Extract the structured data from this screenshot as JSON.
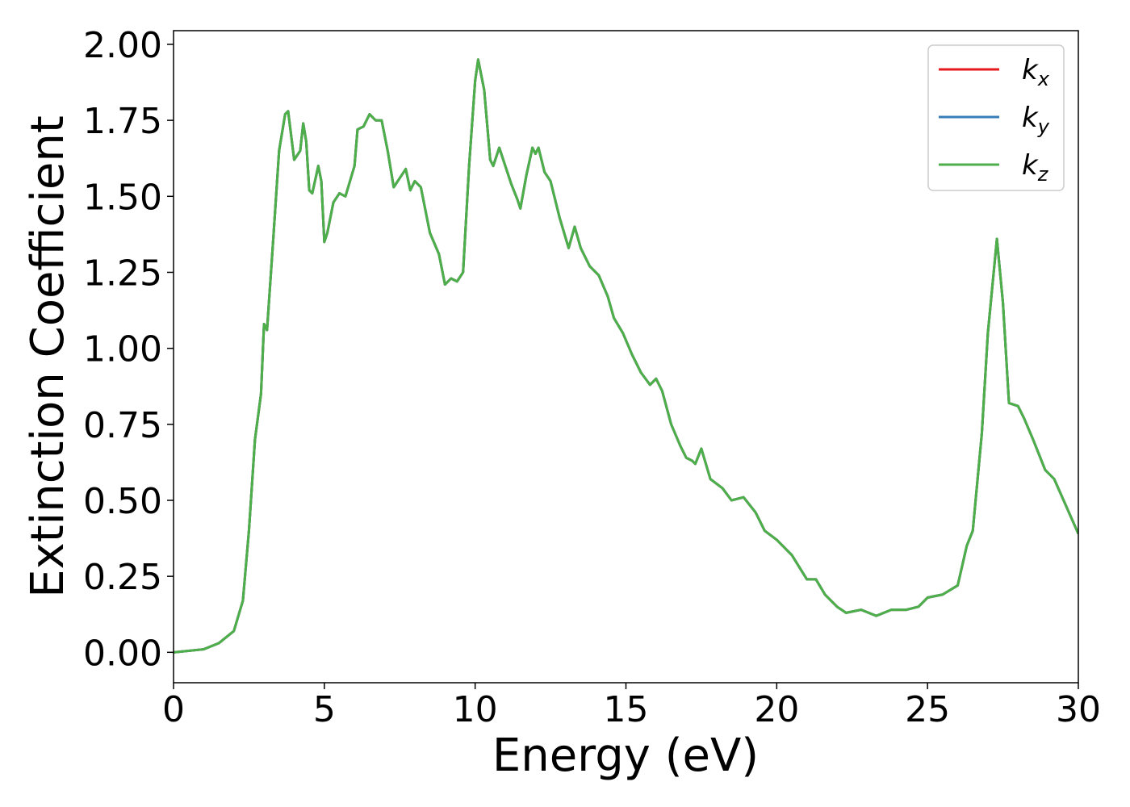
{
  "chart_data": {
    "type": "line",
    "xlabel": "Energy (eV)",
    "ylabel": "Extinction Coefficient",
    "x": [
      0,
      1,
      1.5,
      2.0,
      2.3,
      2.5,
      2.7,
      2.9,
      3.0,
      3.1,
      3.3,
      3.5,
      3.7,
      3.8,
      4.0,
      4.2,
      4.3,
      4.4,
      4.5,
      4.6,
      4.8,
      4.9,
      5.0,
      5.1,
      5.3,
      5.5,
      5.7,
      6.0,
      6.1,
      6.3,
      6.5,
      6.7,
      6.9,
      7.1,
      7.3,
      7.5,
      7.7,
      7.85,
      8.0,
      8.2,
      8.5,
      8.8,
      9.0,
      9.2,
      9.4,
      9.6,
      9.8,
      10.0,
      10.1,
      10.3,
      10.5,
      10.6,
      10.8,
      11.0,
      11.2,
      11.4,
      11.5,
      11.7,
      11.9,
      12.0,
      12.1,
      12.3,
      12.5,
      12.8,
      13.1,
      13.3,
      13.5,
      13.8,
      14.1,
      14.4,
      14.6,
      14.9,
      15.2,
      15.5,
      15.8,
      16.0,
      16.2,
      16.5,
      16.8,
      17.0,
      17.2,
      17.3,
      17.5,
      17.8,
      18.2,
      18.5,
      18.9,
      19.3,
      19.6,
      20.0,
      20.5,
      21.0,
      21.3,
      21.6,
      22.0,
      22.3,
      22.8,
      23.3,
      23.8,
      24.3,
      24.7,
      25.0,
      25.5,
      26.0,
      26.3,
      26.5,
      26.8,
      27.0,
      27.3,
      27.5,
      27.7,
      28.0,
      28.2,
      28.5,
      28.9,
      29.2,
      29.6,
      30.0
    ],
    "series": [
      {
        "name": "kx",
        "color": "#e41a1c",
        "values": [
          0,
          0.01,
          0.03,
          0.07,
          0.17,
          0.4,
          0.7,
          0.85,
          1.08,
          1.06,
          1.35,
          1.65,
          1.77,
          1.78,
          1.62,
          1.65,
          1.74,
          1.68,
          1.52,
          1.51,
          1.6,
          1.55,
          1.35,
          1.38,
          1.48,
          1.51,
          1.5,
          1.6,
          1.72,
          1.73,
          1.77,
          1.75,
          1.75,
          1.65,
          1.53,
          1.56,
          1.59,
          1.52,
          1.55,
          1.53,
          1.38,
          1.31,
          1.21,
          1.23,
          1.22,
          1.25,
          1.6,
          1.88,
          1.95,
          1.85,
          1.62,
          1.6,
          1.66,
          1.6,
          1.54,
          1.49,
          1.46,
          1.57,
          1.66,
          1.64,
          1.66,
          1.58,
          1.55,
          1.43,
          1.33,
          1.4,
          1.33,
          1.27,
          1.24,
          1.17,
          1.1,
          1.05,
          0.98,
          0.92,
          0.88,
          0.9,
          0.86,
          0.75,
          0.68,
          0.64,
          0.63,
          0.62,
          0.67,
          0.57,
          0.54,
          0.5,
          0.51,
          0.46,
          0.4,
          0.37,
          0.32,
          0.24,
          0.24,
          0.19,
          0.15,
          0.13,
          0.14,
          0.12,
          0.14,
          0.14,
          0.15,
          0.18,
          0.19,
          0.22,
          0.35,
          0.4,
          0.72,
          1.05,
          1.36,
          1.15,
          0.82,
          0.81,
          0.77,
          0.7,
          0.6,
          0.57,
          0.48,
          0.39
        ]
      },
      {
        "name": "ky",
        "color": "#377eb8",
        "values": [
          0,
          0.01,
          0.03,
          0.07,
          0.17,
          0.4,
          0.7,
          0.85,
          1.08,
          1.06,
          1.35,
          1.65,
          1.77,
          1.78,
          1.62,
          1.65,
          1.74,
          1.68,
          1.52,
          1.51,
          1.6,
          1.55,
          1.35,
          1.38,
          1.48,
          1.51,
          1.5,
          1.6,
          1.72,
          1.73,
          1.77,
          1.75,
          1.75,
          1.65,
          1.53,
          1.56,
          1.59,
          1.52,
          1.55,
          1.53,
          1.38,
          1.31,
          1.21,
          1.23,
          1.22,
          1.25,
          1.6,
          1.88,
          1.95,
          1.85,
          1.62,
          1.6,
          1.66,
          1.6,
          1.54,
          1.49,
          1.46,
          1.57,
          1.66,
          1.64,
          1.66,
          1.58,
          1.55,
          1.43,
          1.33,
          1.4,
          1.33,
          1.27,
          1.24,
          1.17,
          1.1,
          1.05,
          0.98,
          0.92,
          0.88,
          0.9,
          0.86,
          0.75,
          0.68,
          0.64,
          0.63,
          0.62,
          0.67,
          0.57,
          0.54,
          0.5,
          0.51,
          0.46,
          0.4,
          0.37,
          0.32,
          0.24,
          0.24,
          0.19,
          0.15,
          0.13,
          0.14,
          0.12,
          0.14,
          0.14,
          0.15,
          0.18,
          0.19,
          0.22,
          0.35,
          0.4,
          0.72,
          1.05,
          1.36,
          1.15,
          0.82,
          0.81,
          0.77,
          0.7,
          0.6,
          0.57,
          0.48,
          0.39
        ]
      },
      {
        "name": "kz",
        "color": "#4daf4a",
        "values": [
          0,
          0.01,
          0.03,
          0.07,
          0.17,
          0.4,
          0.7,
          0.85,
          1.08,
          1.06,
          1.35,
          1.65,
          1.77,
          1.78,
          1.62,
          1.65,
          1.74,
          1.68,
          1.52,
          1.51,
          1.6,
          1.55,
          1.35,
          1.38,
          1.48,
          1.51,
          1.5,
          1.6,
          1.72,
          1.73,
          1.77,
          1.75,
          1.75,
          1.65,
          1.53,
          1.56,
          1.59,
          1.52,
          1.55,
          1.53,
          1.38,
          1.31,
          1.21,
          1.23,
          1.22,
          1.25,
          1.6,
          1.88,
          1.95,
          1.85,
          1.62,
          1.6,
          1.66,
          1.6,
          1.54,
          1.49,
          1.46,
          1.57,
          1.66,
          1.64,
          1.66,
          1.58,
          1.55,
          1.43,
          1.33,
          1.4,
          1.33,
          1.27,
          1.24,
          1.17,
          1.1,
          1.05,
          0.98,
          0.92,
          0.88,
          0.9,
          0.86,
          0.75,
          0.68,
          0.64,
          0.63,
          0.62,
          0.67,
          0.57,
          0.54,
          0.5,
          0.51,
          0.46,
          0.4,
          0.37,
          0.32,
          0.24,
          0.24,
          0.19,
          0.15,
          0.13,
          0.14,
          0.12,
          0.14,
          0.14,
          0.15,
          0.18,
          0.19,
          0.22,
          0.35,
          0.4,
          0.72,
          1.05,
          1.36,
          1.15,
          0.82,
          0.81,
          0.77,
          0.7,
          0.6,
          0.57,
          0.48,
          0.39
        ]
      }
    ],
    "xlim": [
      0,
      30
    ],
    "xticks": [
      0,
      5,
      10,
      15,
      20,
      25,
      30
    ],
    "ylim": [
      -0.1,
      2.045
    ],
    "yticks": [
      {
        "value": 0,
        "label": "0.00"
      },
      {
        "value": 0.25,
        "label": "0.25"
      },
      {
        "value": 0.5,
        "label": "0.50"
      },
      {
        "value": 0.75,
        "label": "0.75"
      },
      {
        "value": 1,
        "label": "1.00"
      },
      {
        "value": 1.25,
        "label": "1.25"
      },
      {
        "value": 1.5,
        "label": "1.50"
      },
      {
        "value": 1.75,
        "label": "1.75"
      },
      {
        "value": 2,
        "label": "2.00"
      }
    ],
    "legend": "upper right",
    "grid": false
  }
}
